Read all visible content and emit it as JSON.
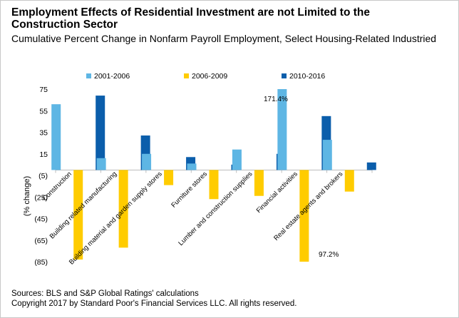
{
  "header": {
    "title": "Employment Effects of Residential Investment are not Limited to the Construction Sector",
    "subtitle": "Cumulative Percent Change in Nonfarm Payroll Employment, Select Housing-Related Industried"
  },
  "footer": {
    "sources": "Sources: BLS and S&P Global Ratings' calculations",
    "copyright": "Copyright 2017 by Standard  Poor's Financial Services LLC. All rights reserved."
  },
  "chart_data": {
    "type": "bar",
    "title": "",
    "xlabel": "",
    "ylabel": "(% change)",
    "ylim": [
      -85,
      75
    ],
    "yticks": [
      75,
      55,
      35,
      15,
      -5,
      -25,
      -45,
      -65,
      -85
    ],
    "ytick_labels": [
      "75",
      "55",
      "35",
      "15",
      "(5)",
      "(25)",
      "(45)",
      "(65)",
      "(85)"
    ],
    "grid": false,
    "legend": "top",
    "categories": [
      "Construction",
      "Building related manufacturing",
      "Building material and garden supply stores",
      "Furniture stores",
      "Lumber and construction supplies",
      "Financial activities",
      "Real estate agents and brokers"
    ],
    "series": [
      {
        "name": "2001-2006",
        "color": "#5eb6e4",
        "values": [
          61,
          11,
          15,
          6,
          19,
          75,
          28
        ]
      },
      {
        "name": "2006-2009",
        "color": "#ffcc00",
        "values": [
          -83,
          -72,
          -14,
          -27,
          -24,
          -85,
          -20
        ]
      },
      {
        "name": "2010-2016",
        "color": "#0b5eab",
        "values": [
          69,
          32,
          12,
          5,
          15,
          50,
          7
        ]
      }
    ],
    "annotations": [
      "171.4%",
      "97.2%"
    ]
  }
}
